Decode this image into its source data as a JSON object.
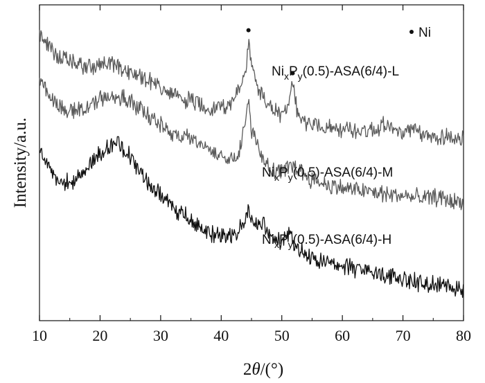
{
  "chart_data": {
    "type": "line",
    "xlabel_prefix": "2",
    "xlabel_var": "θ",
    "xlabel_suffix": "/(°)",
    "ylabel": "Intensity/a.u.",
    "xlim": [
      10,
      80
    ],
    "xticks": [
      "10",
      "20",
      "30",
      "40",
      "50",
      "60",
      "70",
      "80"
    ],
    "legend": {
      "marker": "•",
      "label": "Ni",
      "position": "top-right"
    },
    "peak_markers": [
      {
        "x": 44.5,
        "series": "Ni(x)P(y)(0.5)-ASA(6/4)-L"
      },
      {
        "x": 51.8,
        "series": "Ni(x)P(y)(0.5)-ASA(6/4)-L"
      }
    ],
    "series": [
      {
        "name": "NixPy(0.5)-ASA(6/4)-L",
        "label_parts": [
          "Ni",
          "x",
          "P",
          "y",
          "(0.5)-ASA(6/4)-L"
        ],
        "color": "#5a5a5a",
        "x": [
          10,
          12,
          15,
          18,
          20,
          22,
          24,
          27,
          29,
          30,
          32,
          35,
          38,
          40,
          41,
          42,
          43,
          44,
          44.5,
          45,
          46,
          48,
          50,
          51,
          51.8,
          52.5,
          54,
          57,
          60,
          63,
          66,
          67,
          69,
          72,
          74,
          77,
          80
        ],
        "y": [
          6.55,
          6.15,
          5.88,
          5.79,
          5.82,
          5.85,
          5.73,
          5.55,
          5.45,
          5.28,
          5.12,
          5.02,
          4.85,
          4.88,
          4.92,
          5.05,
          5.22,
          5.7,
          6.4,
          5.78,
          5.32,
          4.88,
          4.68,
          4.82,
          5.42,
          4.75,
          4.55,
          4.42,
          4.35,
          4.33,
          4.38,
          4.55,
          4.28,
          4.32,
          4.18,
          4.22,
          4.12
        ]
      },
      {
        "name": "NixPy(0.5)-ASA(6/4)-M",
        "label_parts": [
          "Ni",
          "x",
          "P",
          "y",
          "(0.5)-ASA(6/4)-M"
        ],
        "color": "#5a5a5a",
        "x": [
          10,
          12,
          15,
          18,
          21,
          23,
          25,
          27,
          30,
          33,
          36,
          39,
          41,
          42,
          43,
          44,
          44.5,
          45,
          46,
          47,
          48,
          50,
          52,
          53,
          55,
          58,
          61,
          64,
          67,
          70,
          73,
          76,
          78,
          80
        ],
        "y": [
          5.55,
          5.05,
          4.75,
          4.88,
          5.12,
          5.08,
          5.02,
          4.78,
          4.45,
          4.22,
          4.08,
          3.85,
          3.68,
          3.72,
          3.9,
          4.5,
          4.95,
          4.4,
          4.05,
          3.68,
          3.45,
          3.38,
          3.55,
          3.42,
          3.22,
          3.08,
          3.0,
          2.95,
          2.88,
          2.85,
          2.78,
          2.82,
          2.72,
          2.7
        ]
      },
      {
        "name": "NixPy(0.5)-ASA(6/4)-H",
        "label_parts": [
          "Ni",
          "x",
          "P",
          "y",
          "(0.5)-ASA(6/4)-H"
        ],
        "color": "#111111",
        "x": [
          10,
          11,
          13,
          15,
          17,
          19,
          21,
          23,
          24,
          26,
          28,
          30,
          32,
          34,
          36,
          38,
          40,
          42,
          43,
          44,
          44.4,
          45,
          46,
          47,
          48,
          50,
          51.5,
          52,
          53,
          55,
          58,
          61,
          64,
          67,
          70,
          72,
          74,
          76,
          78,
          80
        ],
        "y": [
          3.85,
          3.65,
          3.25,
          3.1,
          3.38,
          3.68,
          3.95,
          4.05,
          3.92,
          3.55,
          3.12,
          2.85,
          2.55,
          2.38,
          2.15,
          1.98,
          1.92,
          2.0,
          2.12,
          2.38,
          2.62,
          2.3,
          2.15,
          2.2,
          1.88,
          1.82,
          1.95,
          1.72,
          1.58,
          1.45,
          1.32,
          1.22,
          1.12,
          1.05,
          0.95,
          0.9,
          0.85,
          0.82,
          0.78,
          0.72
        ]
      }
    ]
  }
}
